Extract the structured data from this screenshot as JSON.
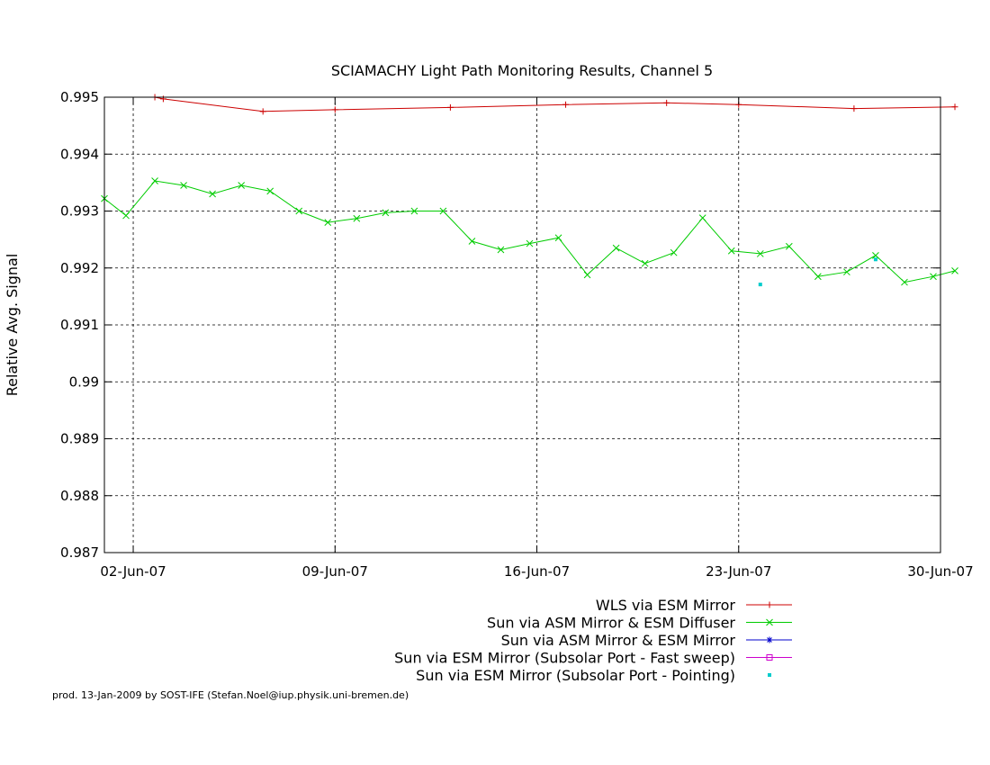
{
  "chart_data": {
    "type": "line",
    "title": "SCIAMACHY Light Path Monitoring Results, Channel 5",
    "xlabel": "",
    "ylabel": "Relative Avg. Signal",
    "xlim": [
      "2007-06-01",
      "2007-06-30"
    ],
    "ylim": [
      0.987,
      0.995
    ],
    "grid": true,
    "legend_position": "bottom-right",
    "x_ticks": [
      {
        "label": "02-Jun-07",
        "date": "2007-06-02"
      },
      {
        "label": "09-Jun-07",
        "date": "2007-06-09"
      },
      {
        "label": "16-Jun-07",
        "date": "2007-06-16"
      },
      {
        "label": "23-Jun-07",
        "date": "2007-06-23"
      },
      {
        "label": "30-Jun-07",
        "date": "2007-06-30"
      }
    ],
    "y_ticks": [
      "0.987",
      "0.988",
      "0.989",
      "0.99",
      "0.991",
      "0.992",
      "0.993",
      "0.994",
      "0.995"
    ],
    "series": [
      {
        "name": "WLS via ESM Mirror",
        "color": "#cc0000",
        "marker": "plus",
        "x": [
          "2007-06-02T18:00",
          "2007-06-03T01:00",
          "2007-06-06T12:00",
          "2007-06-09T00:00",
          "2007-06-13T00:00",
          "2007-06-17T00:00",
          "2007-06-20T12:00",
          "2007-06-23T00:00",
          "2007-06-27T00:00",
          "2007-06-30T12:00"
        ],
        "y": [
          0.995,
          0.99497,
          0.99475,
          0.99478,
          0.99482,
          0.99487,
          0.9949,
          0.99487,
          0.9948,
          0.99483
        ]
      },
      {
        "name": "Sun via ASM Mirror & ESM Diffuser",
        "color": "#00cc00",
        "marker": "x",
        "x": [
          "2007-06-01T00:00",
          "2007-06-01T18:00",
          "2007-06-02T18:00",
          "2007-06-03T18:00",
          "2007-06-04T18:00",
          "2007-06-05T18:00",
          "2007-06-06T18:00",
          "2007-06-07T18:00",
          "2007-06-08T18:00",
          "2007-06-09T18:00",
          "2007-06-10T18:00",
          "2007-06-11T18:00",
          "2007-06-12T18:00",
          "2007-06-13T18:00",
          "2007-06-14T18:00",
          "2007-06-15T18:00",
          "2007-06-16T18:00",
          "2007-06-17T18:00",
          "2007-06-18T18:00",
          "2007-06-19T18:00",
          "2007-06-20T18:00",
          "2007-06-21T18:00",
          "2007-06-22T18:00",
          "2007-06-23T18:00",
          "2007-06-24T18:00",
          "2007-06-25T18:00",
          "2007-06-26T18:00",
          "2007-06-27T18:00",
          "2007-06-28T18:00",
          "2007-06-29T18:00",
          "2007-06-30T12:00"
        ],
        "y": [
          0.99322,
          0.99292,
          0.99353,
          0.99345,
          0.9933,
          0.99345,
          0.99335,
          0.993,
          0.9928,
          0.99287,
          0.99297,
          0.993,
          0.993,
          0.99247,
          0.99232,
          0.99243,
          0.99253,
          0.99188,
          0.99235,
          0.99208,
          0.99227,
          0.99288,
          0.9923,
          0.99225,
          0.99238,
          0.99185,
          0.99193,
          0.99222,
          0.99175,
          0.99185,
          0.99195
        ]
      },
      {
        "name": "Sun via ASM Mirror & ESM Mirror",
        "color": "#0000cc",
        "marker": "star",
        "x": [],
        "y": []
      },
      {
        "name": "Sun via ESM Mirror (Subsolar Port - Fast sweep)",
        "color": "#cc00cc",
        "marker": "square",
        "x": [],
        "y": []
      },
      {
        "name": "Sun via ESM Mirror (Subsolar Port - Pointing)",
        "color": "#00cccc",
        "marker": "dot",
        "x": [
          "2007-06-23T18:00",
          "2007-06-27T18:00"
        ],
        "y": [
          0.99171,
          0.99215
        ]
      }
    ],
    "footer": "prod. 13-Jan-2009 by SOST-IFE (Stefan.Noel@iup.physik.uni-bremen.de)"
  }
}
